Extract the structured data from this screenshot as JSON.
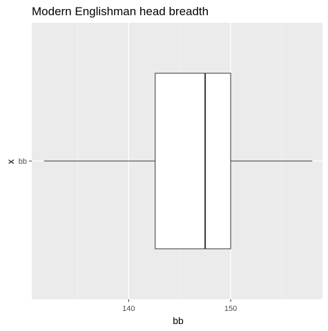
{
  "chart_data": {
    "type": "boxplot",
    "title": "Modern Englishman head breadth",
    "xlabel": "bb",
    "ylabel": "x",
    "orientation": "horizontal",
    "categories": [
      "bb"
    ],
    "x_ticks": [
      140,
      150
    ],
    "xlim": [
      130.5,
      159
    ],
    "boxes": [
      {
        "category": "bb",
        "whisker_low": 131.7,
        "q1": 142.6,
        "median": 147.5,
        "q3": 150.0,
        "whisker_high": 158.0
      }
    ],
    "grid": true,
    "colors": {
      "panel_background": "#ebebeb",
      "grid_major": "#ffffff",
      "grid_minor": "#f5f5f5",
      "box_fill": "#ffffff",
      "box_stroke": "#333333",
      "tick_color": "#333333",
      "tick_label_color": "#4d4d4d"
    }
  }
}
